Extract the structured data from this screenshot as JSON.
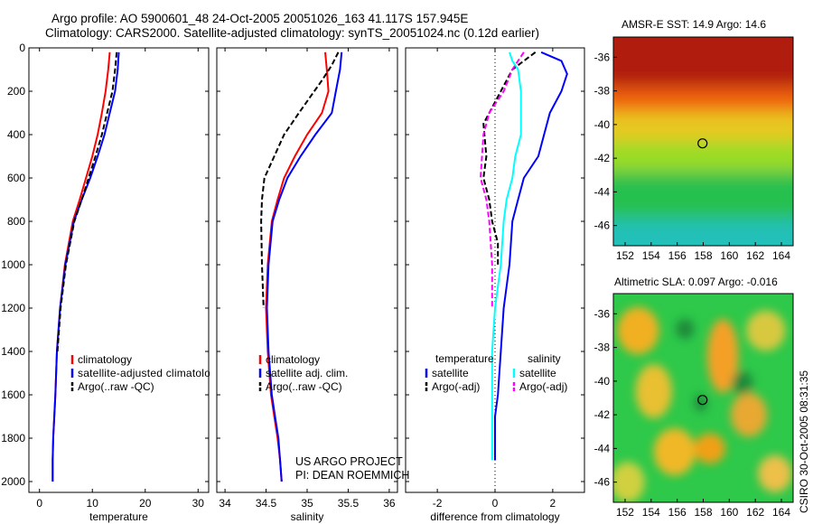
{
  "figure": {
    "title_line1": "Argo profile: AO 5900601_48 24-Oct-2005 20051026_163 41.117S 157.945E",
    "title_line2": "Climatology: CARS2000. Satellite-adjusted climatology: synTS_20051024.nc (0.12d earlier)",
    "credit_line1": "US ARGO PROJECT",
    "credit_line2": "PI: DEAN ROEMMICH",
    "side_stamp": "CSIRO 30-Oct-2005 08:31:35"
  },
  "colors": {
    "climatology": "#ff0000",
    "satellite": "#0000ff",
    "argo": "#000000",
    "diff_temp_satellite": "#00ffff",
    "diff_sal_argo": "#ff00ff",
    "zero_line": "#000000"
  },
  "chart_data": [
    {
      "type": "line",
      "xlabel": "temperature",
      "ylabel": "",
      "xlim": [
        -2,
        32
      ],
      "ylim": [
        2050,
        0
      ],
      "xticks": [
        "0",
        "10",
        "20",
        "30"
      ],
      "yticks": [
        "0",
        "200",
        "400",
        "600",
        "800",
        "1000",
        "1200",
        "1400",
        "1600",
        "1800",
        "2000"
      ],
      "legend": [
        "climatology",
        "satellite-adjusted climatology",
        "Argo(..raw -QC)"
      ],
      "series": [
        {
          "name": "climatology",
          "color_key": "climatology",
          "dash": "solid",
          "x": [
            13.3,
            13.0,
            12.5,
            11.8,
            11.0,
            10.0,
            8.8,
            7.6,
            6.3,
            4.8,
            3.9,
            3.3,
            3.0,
            2.8,
            2.6,
            2.5,
            2.5
          ],
          "y": [
            20,
            100,
            200,
            300,
            400,
            500,
            600,
            700,
            800,
            1000,
            1200,
            1400,
            1600,
            1700,
            1800,
            1900,
            2000
          ]
        },
        {
          "name": "satellite-adjusted climatology",
          "color_key": "satellite",
          "dash": "solid",
          "x": [
            15.0,
            14.8,
            14.3,
            13.3,
            12.3,
            11.0,
            9.6,
            8.0,
            6.5,
            4.9,
            3.9,
            3.3,
            3.0,
            2.8,
            2.6,
            2.5,
            2.5
          ],
          "y": [
            20,
            100,
            200,
            300,
            400,
            500,
            600,
            700,
            800,
            1000,
            1200,
            1400,
            1600,
            1700,
            1800,
            1900,
            2000
          ]
        },
        {
          "name": "Argo(..raw -QC)",
          "color_key": "argo",
          "dash": "dashed",
          "x": [
            14.6,
            14.3,
            13.8,
            12.8,
            11.8,
            10.6,
            9.3,
            8.0,
            6.6,
            5.0,
            4.0,
            3.4
          ],
          "y": [
            20,
            100,
            200,
            300,
            400,
            500,
            600,
            700,
            800,
            1000,
            1200,
            1400
          ]
        }
      ]
    },
    {
      "type": "line",
      "xlabel": "salinity",
      "ylabel": "",
      "xlim": [
        33.9,
        36.1
      ],
      "ylim": [
        2050,
        0
      ],
      "xticks": [
        "34",
        "34.5",
        "35",
        "35.5",
        "36"
      ],
      "legend": [
        "climatology",
        "satellite adj. clim.",
        "Argo(..raw -QC)"
      ],
      "series": [
        {
          "name": "climatology",
          "color_key": "climatology",
          "dash": "solid",
          "x": [
            35.22,
            35.24,
            35.26,
            35.18,
            35.0,
            34.85,
            34.72,
            34.64,
            34.57,
            34.52,
            34.5,
            34.52,
            34.56,
            34.6,
            34.64,
            34.67,
            34.69
          ],
          "y": [
            20,
            100,
            200,
            300,
            400,
            500,
            600,
            700,
            800,
            1000,
            1200,
            1400,
            1600,
            1700,
            1800,
            1900,
            2000
          ]
        },
        {
          "name": "satellite adj. clim.",
          "color_key": "satellite",
          "dash": "solid",
          "x": [
            35.42,
            35.4,
            35.35,
            35.3,
            35.1,
            34.92,
            34.76,
            34.66,
            34.58,
            34.53,
            34.51,
            34.53,
            34.57,
            34.61,
            34.65,
            34.67,
            34.69
          ],
          "y": [
            20,
            100,
            200,
            300,
            400,
            500,
            600,
            700,
            800,
            1000,
            1200,
            1400,
            1600,
            1700,
            1800,
            1900,
            2000
          ]
        },
        {
          "name": "Argo(..raw -QC)",
          "color_key": "argo",
          "dash": "dashed",
          "x": [
            35.38,
            35.3,
            35.18,
            34.9,
            34.72,
            34.6,
            34.48,
            34.45,
            34.44,
            34.45,
            34.47
          ],
          "y": [
            20,
            80,
            150,
            300,
            400,
            500,
            600,
            700,
            800,
            1000,
            1200
          ]
        }
      ]
    },
    {
      "type": "line",
      "xlabel": "difference from climatology",
      "ylabel": "",
      "xlim": [
        -3.1,
        3.1
      ],
      "ylim": [
        2050,
        0
      ],
      "xticks": [
        "-2",
        "0",
        "2"
      ],
      "legend": [
        "temperature",
        "satellite",
        "Argo(-adj)",
        "salinity",
        "satellite",
        "Argo(-adj)"
      ],
      "series": [
        {
          "name": "satellite",
          "group": "temperature",
          "color_key": "satellite",
          "dash": "solid",
          "x": [
            1.6,
            2.3,
            2.5,
            2.3,
            1.9,
            1.7,
            1.5,
            1.0,
            0.8,
            0.6,
            0.5,
            0.3,
            0.2,
            0.1,
            0.0,
            0.0,
            0.0
          ],
          "y": [
            20,
            60,
            120,
            200,
            300,
            400,
            500,
            600,
            700,
            800,
            1000,
            1200,
            1400,
            1600,
            1700,
            1800,
            1900
          ]
        },
        {
          "name": "Argo(-adj)",
          "group": "temperature",
          "color_key": "argo",
          "dash": "dashed",
          "x": [
            1.4,
            1.0,
            0.6,
            0.2,
            -0.4,
            -0.3,
            -0.4,
            -0.2,
            -0.1,
            0.1,
            0.1
          ],
          "y": [
            20,
            60,
            100,
            200,
            350,
            500,
            600,
            700,
            800,
            900,
            1000
          ]
        },
        {
          "name": "satellite",
          "group": "salinity",
          "color_key": "diff_temp_satellite",
          "dash": "solid",
          "x": [
            0.5,
            0.6,
            0.8,
            0.9,
            0.9,
            0.7,
            0.6,
            0.4,
            0.3,
            0.2,
            0.0,
            -0.1,
            -0.1,
            -0.1,
            -0.1,
            -0.1
          ],
          "y": [
            20,
            60,
            100,
            200,
            400,
            500,
            600,
            700,
            800,
            1000,
            1200,
            1400,
            1600,
            1700,
            1800,
            1900
          ]
        },
        {
          "name": "Argo(-adj)",
          "group": "salinity",
          "color_key": "diff_sal_argo",
          "dash": "dashed",
          "x": [
            1.0,
            0.8,
            0.6,
            0.3,
            -0.2,
            -0.4,
            -0.5,
            -0.3,
            -0.2,
            -0.1,
            -0.1,
            -0.1
          ],
          "y": [
            20,
            60,
            100,
            200,
            300,
            400,
            600,
            700,
            800,
            1000,
            1100,
            1200
          ]
        }
      ]
    },
    {
      "type": "heatmap",
      "title": "AMSR-E SST: 14.9  Argo: 14.6",
      "xlim": [
        151.1,
        164.9
      ],
      "ylim": [
        -47.2,
        -34.8
      ],
      "xticks": [
        "152",
        "154",
        "156",
        "158",
        "160",
        "162",
        "164"
      ],
      "yticks": [
        "-36",
        "-38",
        "-40",
        "-42",
        "-44",
        "-46"
      ],
      "marker": {
        "lon": 157.945,
        "lat": -41.117
      },
      "bands": [
        {
          "lat_top": -34.8,
          "lat_bottom": -37.8,
          "color": "#b01a0a"
        },
        {
          "lat_top": -37.8,
          "lat_bottom": -39.2,
          "color": "#f06010"
        },
        {
          "lat_top": -39.2,
          "lat_bottom": -41.0,
          "color": "#e8c820"
        },
        {
          "lat_top": -41.0,
          "lat_bottom": -42.8,
          "color": "#9adc28"
        },
        {
          "lat_top": -42.8,
          "lat_bottom": -45.6,
          "color": "#28c050"
        },
        {
          "lat_top": -45.6,
          "lat_bottom": -47.2,
          "color": "#20c0b8"
        }
      ]
    },
    {
      "type": "heatmap",
      "title": "Altimetric SLA: 0.097  Argo: -0.016",
      "xlim": [
        151.1,
        164.9
      ],
      "ylim": [
        -47.2,
        -34.8
      ],
      "xticks": [
        "152",
        "154",
        "156",
        "158",
        "160",
        "162",
        "164"
      ],
      "yticks": [
        "-36",
        "-38",
        "-40",
        "-42",
        "-44",
        "-46"
      ],
      "marker": {
        "lon": 157.945,
        "lat": -41.117
      },
      "base_color": "#2ec84a",
      "blobs": [
        {
          "lon": 153.0,
          "lat": -37.0,
          "rlon": 1.6,
          "rlat": 1.4,
          "color": "#f0b020"
        },
        {
          "lon": 154.2,
          "lat": -40.6,
          "rlon": 1.4,
          "rlat": 1.6,
          "color": "#e8c030"
        },
        {
          "lon": 159.5,
          "lat": -38.5,
          "rlon": 1.2,
          "rlat": 2.2,
          "color": "#f4a028"
        },
        {
          "lon": 162.8,
          "lat": -37.0,
          "rlon": 1.5,
          "rlat": 1.2,
          "color": "#d8c840"
        },
        {
          "lon": 161.5,
          "lat": -42.0,
          "rlon": 1.4,
          "rlat": 1.3,
          "color": "#e8a830"
        },
        {
          "lon": 155.8,
          "lat": -44.2,
          "rlon": 1.6,
          "rlat": 1.4,
          "color": "#f0b828"
        },
        {
          "lon": 158.5,
          "lat": -44.0,
          "rlon": 1.2,
          "rlat": 0.9,
          "color": "#f0a018"
        },
        {
          "lon": 163.5,
          "lat": -45.5,
          "rlon": 1.3,
          "rlat": 1.1,
          "color": "#ecc048"
        },
        {
          "lon": 152.2,
          "lat": -46.0,
          "rlon": 1.3,
          "rlat": 1.2,
          "color": "#d0d040"
        },
        {
          "lon": 156.6,
          "lat": -36.9,
          "rlon": 0.7,
          "rlat": 0.6,
          "color": "#1a8a3a"
        },
        {
          "lon": 161.0,
          "lat": -40.1,
          "rlon": 0.8,
          "rlat": 0.7,
          "color": "#1a8a3a"
        },
        {
          "lon": 157.8,
          "lat": -41.3,
          "rlon": 0.5,
          "rlat": 0.5,
          "color": "#1a8a3a"
        }
      ]
    }
  ]
}
